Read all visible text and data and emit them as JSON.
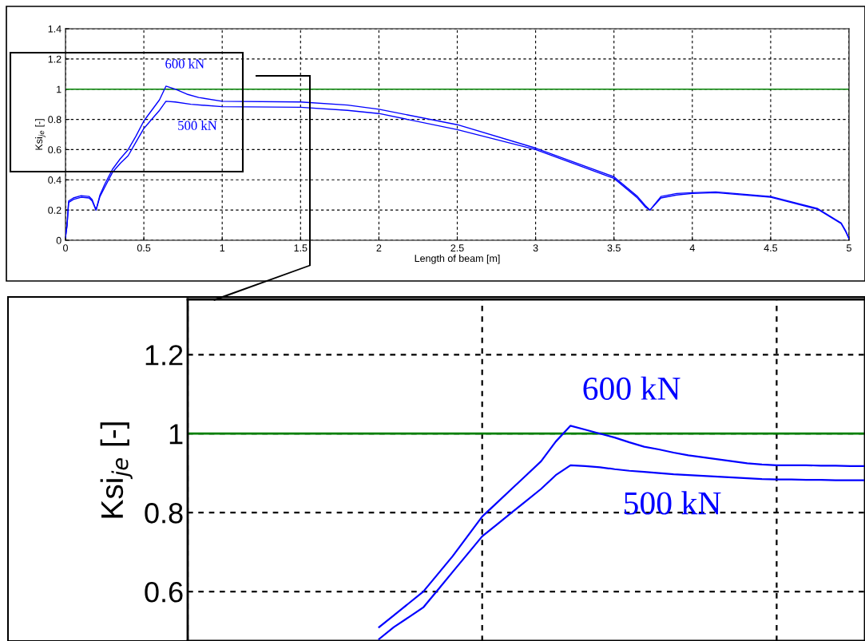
{
  "chart_data": [
    {
      "type": "line",
      "xlabel": "Length of beam [m]",
      "ylabel": "Ksi$_{je}$ [-]",
      "xlim": [
        0,
        5
      ],
      "ylim": [
        0,
        1.4
      ],
      "xticks": [
        0,
        0.5,
        1,
        1.5,
        2,
        2.5,
        3,
        3.5,
        4,
        4.5,
        5
      ],
      "yticks": [
        0,
        0.2,
        0.4,
        0.6,
        0.8,
        1,
        1.2,
        1.4
      ],
      "grid": true,
      "line_style": "solid",
      "ref_lines": [
        {
          "axis": "y",
          "value": 1,
          "color": "#008000"
        }
      ],
      "series": [
        {
          "name": "600 kN",
          "color": "#0000ff",
          "x": [
            0,
            0.01,
            0.02,
            0.05,
            0.1,
            0.15,
            0.17,
            0.195,
            0.22,
            0.25,
            0.3,
            0.35,
            0.4,
            0.45,
            0.5,
            0.55,
            0.6,
            0.641,
            0.7,
            0.775,
            0.85,
            1.0,
            1.5,
            1.8,
            2.0,
            2.5,
            3.0,
            3.5,
            3.65,
            3.7,
            3.73,
            3.8,
            3.9,
            4.0,
            4.15,
            4.5,
            4.8,
            4.95,
            4.98,
            5
          ],
          "values": [
            0.02,
            0.1,
            0.26,
            0.28,
            0.295,
            0.29,
            0.27,
            0.2,
            0.3,
            0.37,
            0.47,
            0.54,
            0.6,
            0.69,
            0.79,
            0.86,
            0.93,
            1.02,
            1.0,
            0.967,
            0.945,
            0.92,
            0.915,
            0.895,
            0.867,
            0.765,
            0.61,
            0.42,
            0.29,
            0.23,
            0.2,
            0.29,
            0.31,
            0.315,
            0.32,
            0.29,
            0.21,
            0.115,
            0.06,
            0.01
          ]
        },
        {
          "name": "500 kN",
          "color": "#0000ff",
          "x": [
            0,
            0.01,
            0.02,
            0.05,
            0.1,
            0.15,
            0.17,
            0.195,
            0.22,
            0.25,
            0.3,
            0.35,
            0.4,
            0.45,
            0.5,
            0.55,
            0.6,
            0.641,
            0.7,
            0.8,
            1.0,
            1.5,
            1.8,
            2.0,
            2.5,
            3.0,
            3.5,
            3.65,
            3.7,
            3.73,
            3.8,
            3.9,
            4.0,
            4.15,
            4.5,
            4.8,
            4.95,
            4.98,
            5
          ],
          "values": [
            0.02,
            0.1,
            0.25,
            0.27,
            0.285,
            0.28,
            0.26,
            0.2,
            0.29,
            0.35,
            0.45,
            0.51,
            0.56,
            0.65,
            0.74,
            0.8,
            0.86,
            0.92,
            0.915,
            0.9,
            0.884,
            0.88,
            0.86,
            0.839,
            0.732,
            0.6,
            0.41,
            0.28,
            0.22,
            0.2,
            0.28,
            0.3,
            0.31,
            0.315,
            0.285,
            0.205,
            0.11,
            0.055,
            0.01
          ]
        }
      ]
    },
    {
      "type": "line",
      "ylabel": "Ksi$_{je}$ [-]",
      "categories": [
        null,
        null,
        null,
        null,
        null,
        null,
        null,
        null,
        null,
        null,
        null,
        null,
        null,
        null,
        null,
        null,
        null,
        null,
        null,
        null,
        null,
        null,
        null,
        null,
        null,
        null,
        null,
        null,
        null,
        null,
        null,
        null,
        null,
        null,
        null,
        null,
        null,
        null,
        null,
        null,
        null,
        null,
        null,
        null,
        null,
        null,
        null
      ],
      "ylim": [
        0.475,
        1.34
      ],
      "yticks": [
        0.6,
        0.8,
        1,
        1.2
      ],
      "tick_labels": "y",
      "grid": true,
      "line_style": "solid",
      "ref_lines": [
        {
          "axis": "y",
          "value": 1,
          "color": "#008000"
        }
      ],
      "series": [
        {
          "name": "600 kN",
          "color": "#0000ff",
          "values": [
            null,
            null,
            null,
            null,
            null,
            null,
            null,
            null,
            null,
            null,
            null,
            null,
            null,
            0.51,
            0.54,
            0.57,
            0.6,
            0.645,
            0.69,
            0.74,
            0.79,
            0.825,
            0.86,
            0.895,
            0.93,
            0.98,
            1.02,
            1.01,
            1.0,
            0.99,
            0.978,
            0.967,
            0.96,
            0.952,
            0.945,
            0.94,
            0.935,
            0.93,
            0.925,
            0.922,
            0.92,
            0.92,
            0.92,
            0.919,
            0.919,
            0.918,
            0.918
          ]
        },
        {
          "name": "500 kN",
          "color": "#0000ff",
          "values": [
            null,
            null,
            null,
            null,
            null,
            null,
            null,
            null,
            null,
            null,
            null,
            null,
            null,
            0.48,
            0.51,
            0.535,
            0.56,
            0.605,
            0.65,
            0.695,
            0.74,
            0.77,
            0.8,
            0.83,
            0.86,
            0.895,
            0.92,
            0.918,
            0.915,
            0.91,
            0.906,
            0.903,
            0.9,
            0.897,
            0.895,
            0.893,
            0.891,
            0.889,
            0.887,
            0.885,
            0.884,
            0.884,
            0.883,
            0.883,
            0.882,
            0.882,
            0.882
          ]
        }
      ]
    }
  ]
}
